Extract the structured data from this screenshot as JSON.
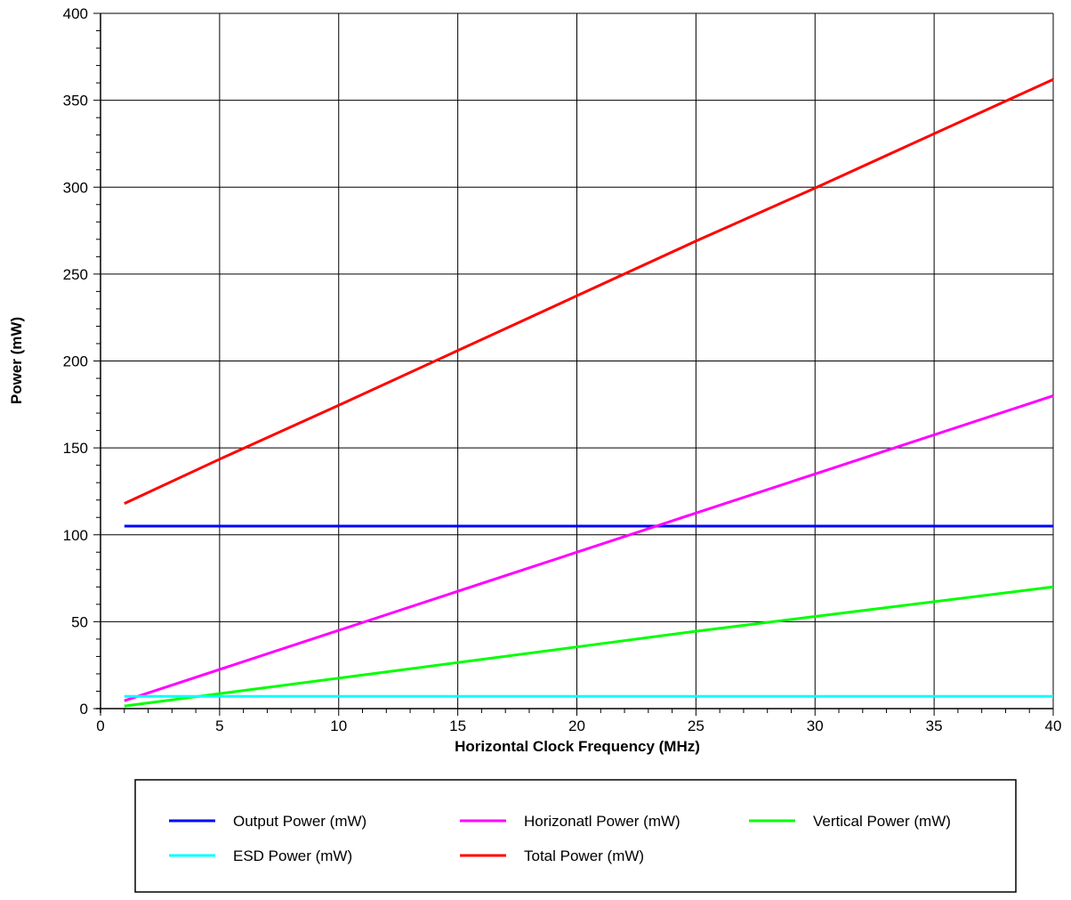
{
  "chart_data": {
    "type": "line",
    "title": "",
    "xlabel": "Horizontal Clock Frequency (MHz)",
    "ylabel": "Power (mW)",
    "xlim": [
      0,
      40
    ],
    "ylim": [
      0,
      400
    ],
    "xticks": [
      0,
      5,
      10,
      15,
      20,
      25,
      30,
      35,
      40
    ],
    "yticks": [
      0,
      50,
      100,
      150,
      200,
      250,
      300,
      350,
      400
    ],
    "grid": true,
    "legend_position": "bottom",
    "series": [
      {
        "name": "Output Power (mW)",
        "color": "#0000ff",
        "x": [
          1,
          40
        ],
        "y": [
          105,
          105
        ]
      },
      {
        "name": "Horizonatl Power (mW)",
        "color": "#ff00ff",
        "x": [
          1,
          10,
          20,
          25,
          30,
          40
        ],
        "y": [
          4.5,
          45,
          90,
          112.5,
          135,
          180
        ]
      },
      {
        "name": "Vertical Power (mW)",
        "color": "#00ff00",
        "x": [
          1,
          10,
          20,
          25,
          30,
          40
        ],
        "y": [
          1.5,
          17.5,
          35.5,
          44.5,
          53,
          70
        ]
      },
      {
        "name": "ESD Power (mW)",
        "color": "#00ffff",
        "x": [
          1,
          40
        ],
        "y": [
          7,
          7
        ]
      },
      {
        "name": "Total Power (mW)",
        "color": "#ff0000",
        "x": [
          1,
          5,
          10,
          15,
          20,
          25,
          30,
          40
        ],
        "y": [
          118,
          143.5,
          174.5,
          206,
          237.5,
          269,
          299.5,
          362
        ]
      }
    ]
  }
}
